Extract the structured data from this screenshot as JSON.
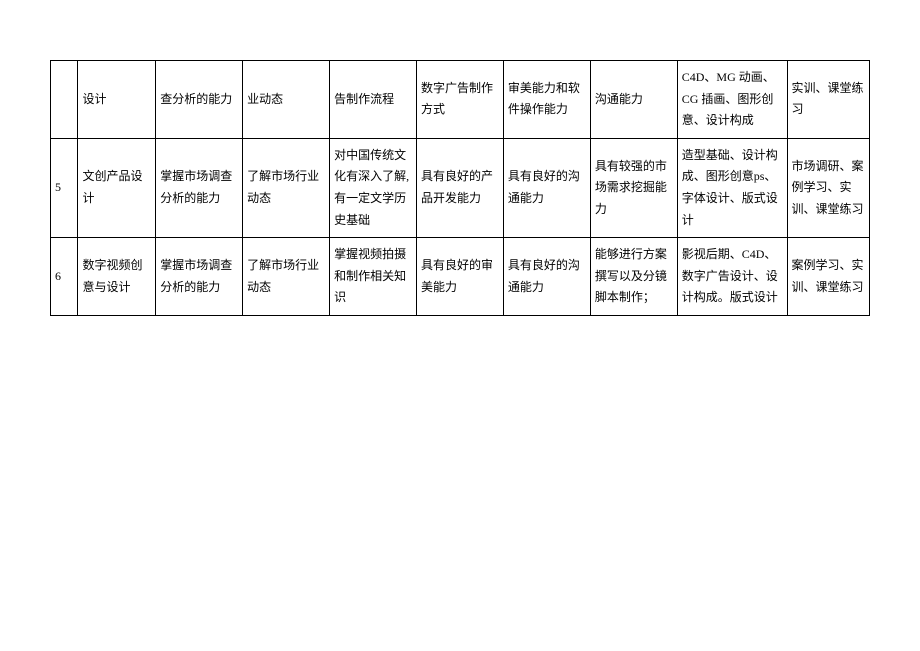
{
  "table": {
    "rows": [
      {
        "id": "",
        "c1": "设计",
        "c2": "查分析的能力",
        "c3": "业动态",
        "c4": "告制作流程",
        "c5": "数字广告制作方式",
        "c6": "审美能力和软件操作能力",
        "c7": "沟通能力",
        "c8": "C4D、MG 动画、CG 插画、图形创意、设计构成",
        "c9": "实训、课堂练习"
      },
      {
        "id": "5",
        "c1": "文创产品设计",
        "c2": "掌握市场调查分析的能力",
        "c3": "了解市场行业动态",
        "c4": "对中国传统文化有深入了解,有一定文学历史基础",
        "c5": "具有良好的产品开发能力",
        "c6": "具有良好的沟通能力",
        "c7": "具有较强的市场需求挖掘能力",
        "c8": "造型基础、设计构成、图形创意ps、字体设计、版式设计",
        "c9": "市场调研、案例学习、实训、课堂练习"
      },
      {
        "id": "6",
        "c1": "数字视频创意与设计",
        "c2": "掌握市场调查分析的能力",
        "c3": "了解市场行业动态",
        "c4": "掌握视频拍摄和制作相关知识",
        "c5": "具有良好的审美能力",
        "c6": "具有良好的沟通能力",
        "c7": "能够进行方案撰写以及分镜脚本制作；",
        "c8": "影视后期、C4D、数字广告设计、设计构成。版式设计",
        "c9": "案例学习、实训、课堂练习"
      }
    ]
  }
}
